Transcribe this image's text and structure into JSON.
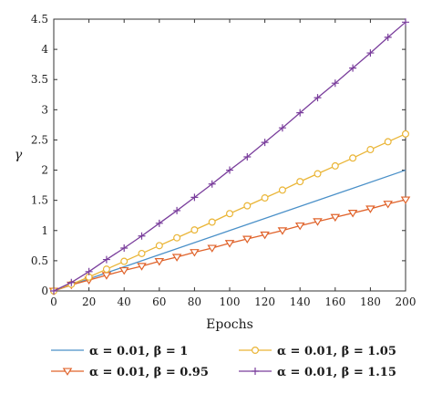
{
  "chart_data": {
    "type": "line",
    "xlabel": "Epochs",
    "ylabel": "γ",
    "xlim": [
      0,
      200
    ],
    "ylim": [
      0,
      4.5
    ],
    "xticks": [
      "0",
      "20",
      "40",
      "60",
      "80",
      "100",
      "120",
      "140",
      "160",
      "180",
      "200"
    ],
    "yticks": [
      "0",
      "0.5",
      "1",
      "1.5",
      "2",
      "2.5",
      "3",
      "3.5",
      "4",
      "4.5"
    ],
    "grid": false,
    "legend_position": "bottom",
    "series": [
      {
        "name": "α = 0.01, β = 1",
        "color": "#4a90c8",
        "marker": "none",
        "x": [
          0,
          200
        ],
        "y": [
          0,
          2.0
        ]
      },
      {
        "name": "α = 0.01, β = 0.95",
        "color": "#e0632b",
        "marker": "triangle-down",
        "x": [
          0,
          10,
          20,
          30,
          40,
          50,
          60,
          70,
          80,
          90,
          100,
          110,
          120,
          130,
          140,
          150,
          160,
          170,
          180,
          190,
          200
        ],
        "y": [
          0,
          0.1,
          0.18,
          0.26,
          0.34,
          0.41,
          0.49,
          0.56,
          0.64,
          0.71,
          0.79,
          0.86,
          0.93,
          1.0,
          1.08,
          1.15,
          1.22,
          1.29,
          1.36,
          1.44,
          1.51
        ]
      },
      {
        "name": "α = 0.01, β = 1.05",
        "color": "#eab536",
        "marker": "circle",
        "x": [
          0,
          10,
          20,
          30,
          40,
          50,
          60,
          70,
          80,
          90,
          100,
          110,
          120,
          130,
          140,
          150,
          160,
          170,
          180,
          190,
          200
        ],
        "y": [
          0,
          0.11,
          0.23,
          0.36,
          0.49,
          0.62,
          0.75,
          0.88,
          1.01,
          1.14,
          1.28,
          1.41,
          1.54,
          1.67,
          1.81,
          1.94,
          2.07,
          2.2,
          2.34,
          2.47,
          2.6
        ]
      },
      {
        "name": "α = 0.01, β = 1.15",
        "color": "#7a3e9c",
        "marker": "plus",
        "x": [
          0,
          10,
          20,
          30,
          40,
          50,
          60,
          70,
          80,
          90,
          100,
          110,
          120,
          130,
          140,
          150,
          160,
          170,
          180,
          190,
          200
        ],
        "y": [
          0,
          0.14,
          0.32,
          0.52,
          0.71,
          0.91,
          1.12,
          1.33,
          1.55,
          1.77,
          2.0,
          2.22,
          2.46,
          2.7,
          2.95,
          3.2,
          3.44,
          3.69,
          3.94,
          4.2,
          4.45
        ]
      }
    ]
  }
}
